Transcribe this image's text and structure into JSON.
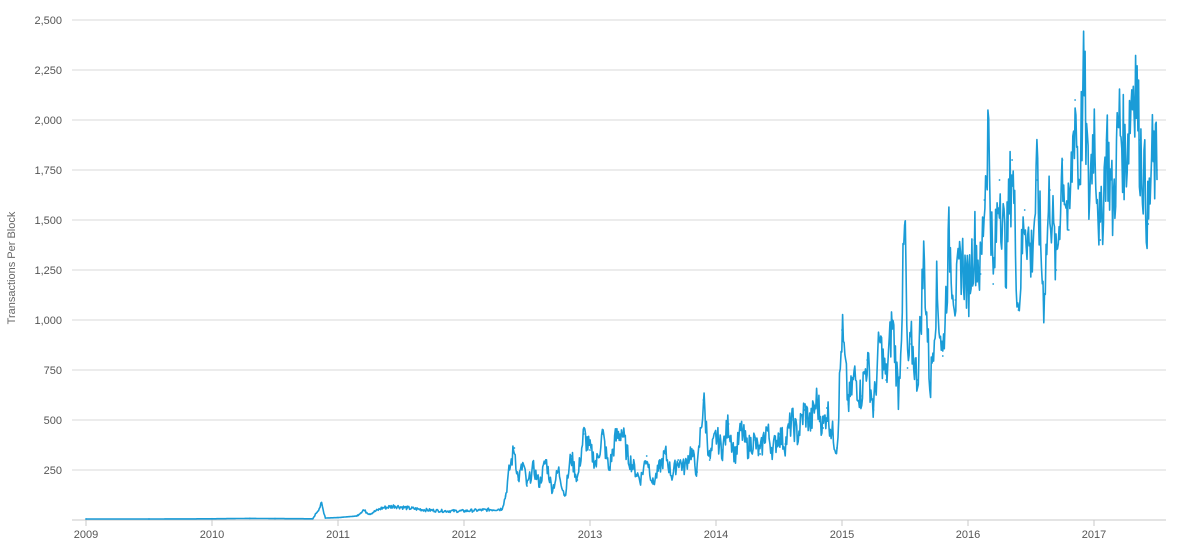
{
  "chart_data": {
    "type": "line",
    "title": "",
    "xlabel": "",
    "ylabel": "Transactions Per Block",
    "xlim": [
      2009.0,
      2017.55
    ],
    "ylim": [
      0,
      2500
    ],
    "x_ticks": [
      "2009",
      "2010",
      "2011",
      "2012",
      "2013",
      "2014",
      "2015",
      "2016",
      "2017"
    ],
    "y_ticks": [
      "250",
      "500",
      "750",
      "1,000",
      "1,250",
      "1,500",
      "1,750",
      "2,000",
      "2,250",
      "2,500"
    ],
    "grid": "horizontal",
    "legend": "none",
    "series": [
      {
        "color": "#1a9cd7",
        "x": [
          2009.0,
          2009.5,
          2010.0,
          2010.3,
          2010.5,
          2010.8,
          2010.87,
          2010.9,
          2011.0,
          2011.15,
          2011.2,
          2011.25,
          2011.35,
          2011.45,
          2011.55,
          2011.7,
          2011.85,
          2012.0,
          2012.15,
          2012.3,
          2012.33,
          2012.36,
          2012.4,
          2012.43,
          2012.47,
          2012.5,
          2012.55,
          2012.6,
          2012.65,
          2012.7,
          2012.75,
          2012.8,
          2012.85,
          2012.9,
          2012.95,
          2013.0,
          2013.05,
          2013.1,
          2013.15,
          2013.2,
          2013.25,
          2013.3,
          2013.35,
          2013.4,
          2013.45,
          2013.5,
          2013.55,
          2013.6,
          2013.65,
          2013.7,
          2013.75,
          2013.8,
          2013.85,
          2013.9,
          2013.95,
          2014.0,
          2014.05,
          2014.1,
          2014.15,
          2014.2,
          2014.25,
          2014.3,
          2014.35,
          2014.4,
          2014.45,
          2014.5,
          2014.55,
          2014.6,
          2014.65,
          2014.7,
          2014.75,
          2014.8,
          2014.85,
          2014.88,
          2014.92,
          2014.96,
          2015.0,
          2015.05,
          2015.1,
          2015.15,
          2015.2,
          2015.25,
          2015.3,
          2015.35,
          2015.4,
          2015.45,
          2015.5,
          2015.52,
          2015.55,
          2015.6,
          2015.65,
          2015.7,
          2015.75,
          2015.8,
          2015.85,
          2015.9,
          2015.95,
          2016.0,
          2016.05,
          2016.1,
          2016.13,
          2016.16,
          2016.2,
          2016.25,
          2016.3,
          2016.35,
          2016.4,
          2016.45,
          2016.5,
          2016.55,
          2016.6,
          2016.65,
          2016.7,
          2016.75,
          2016.8,
          2016.85,
          2016.88,
          2016.92,
          2016.96,
          2017.0,
          2017.05,
          2017.1,
          2017.15,
          2017.2,
          2017.25,
          2017.3,
          2017.33,
          2017.36,
          2017.4,
          2017.43,
          2017.46,
          2017.5
        ],
        "y": [
          5,
          5,
          6,
          8,
          7,
          6,
          80,
          10,
          12,
          20,
          50,
          30,
          60,
          70,
          60,
          50,
          45,
          45,
          50,
          55,
          120,
          250,
          360,
          200,
          280,
          170,
          260,
          180,
          300,
          150,
          250,
          120,
          320,
          200,
          430,
          350,
          280,
          430,
          250,
          400,
          450,
          320,
          260,
          200,
          320,
          180,
          260,
          330,
          220,
          300,
          260,
          350,
          240,
          600,
          300,
          420,
          350,
          480,
          320,
          450,
          360,
          400,
          330,
          460,
          350,
          430,
          380,
          500,
          420,
          550,
          480,
          600,
          460,
          560,
          440,
          360,
          950,
          580,
          720,
          620,
          800,
          550,
          900,
          700,
          1000,
          620,
          1490,
          760,
          880,
          700,
          1320,
          650,
          1150,
          820,
          1400,
          1100,
          1320,
          1150,
          1400,
          1230,
          1600,
          1980,
          1180,
          1700,
          1300,
          1800,
          1050,
          1550,
          1300,
          1700,
          1100,
          1650,
          1250,
          1800,
          1450,
          2100,
          1700,
          2200,
          1600,
          2000,
          1400,
          1900,
          1550,
          2000,
          1800,
          2150,
          2240,
          1900,
          1700,
          1480,
          1800,
          1750
        ]
      }
    ]
  }
}
